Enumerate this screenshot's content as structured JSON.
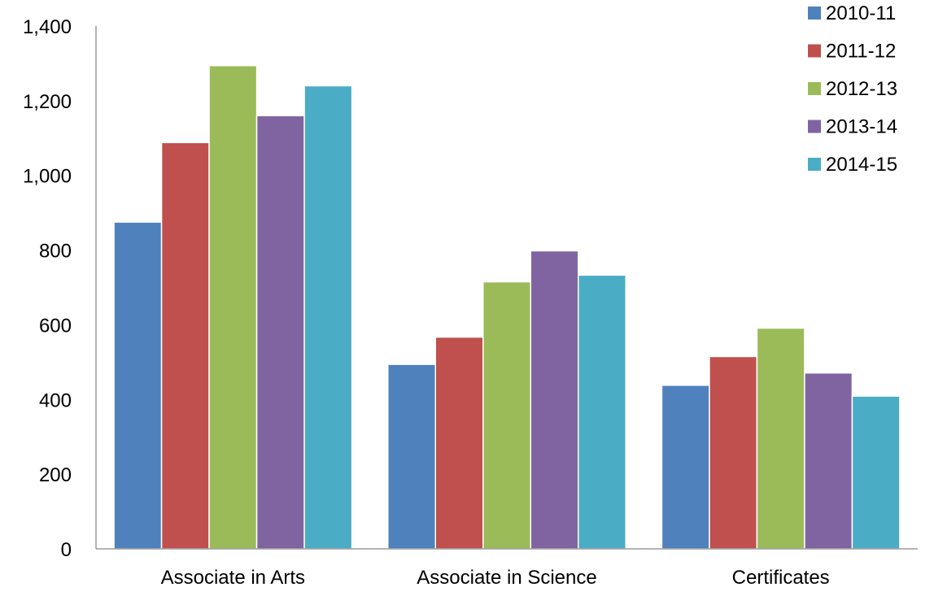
{
  "chart_data": {
    "type": "bar",
    "title": "",
    "xlabel": "",
    "ylabel": "",
    "categories": [
      "Associate in Arts",
      "Associate in Science",
      "Certificates"
    ],
    "series": [
      {
        "name": "2010-11",
        "values": [
          875,
          494,
          438
        ],
        "color": "#4F81BD"
      },
      {
        "name": "2011-12",
        "values": [
          1088,
          567,
          515
        ],
        "color": "#C0504D"
      },
      {
        "name": "2012-13",
        "values": [
          1294,
          715,
          591
        ],
        "color": "#9BBB59"
      },
      {
        "name": "2013-14",
        "values": [
          1160,
          798,
          471
        ],
        "color": "#8064A2"
      },
      {
        "name": "2014-15",
        "values": [
          1240,
          733,
          409
        ],
        "color": "#4BACC6"
      }
    ],
    "ylim": [
      0,
      1400
    ],
    "yticks": [
      0,
      200,
      400,
      600,
      800,
      1000,
      1200,
      1400
    ],
    "ytick_labels": [
      "0",
      "200",
      "400",
      "600",
      "800",
      "1,000",
      "1,200",
      "1,400"
    ],
    "grid": false,
    "legend_position": "top-right"
  }
}
